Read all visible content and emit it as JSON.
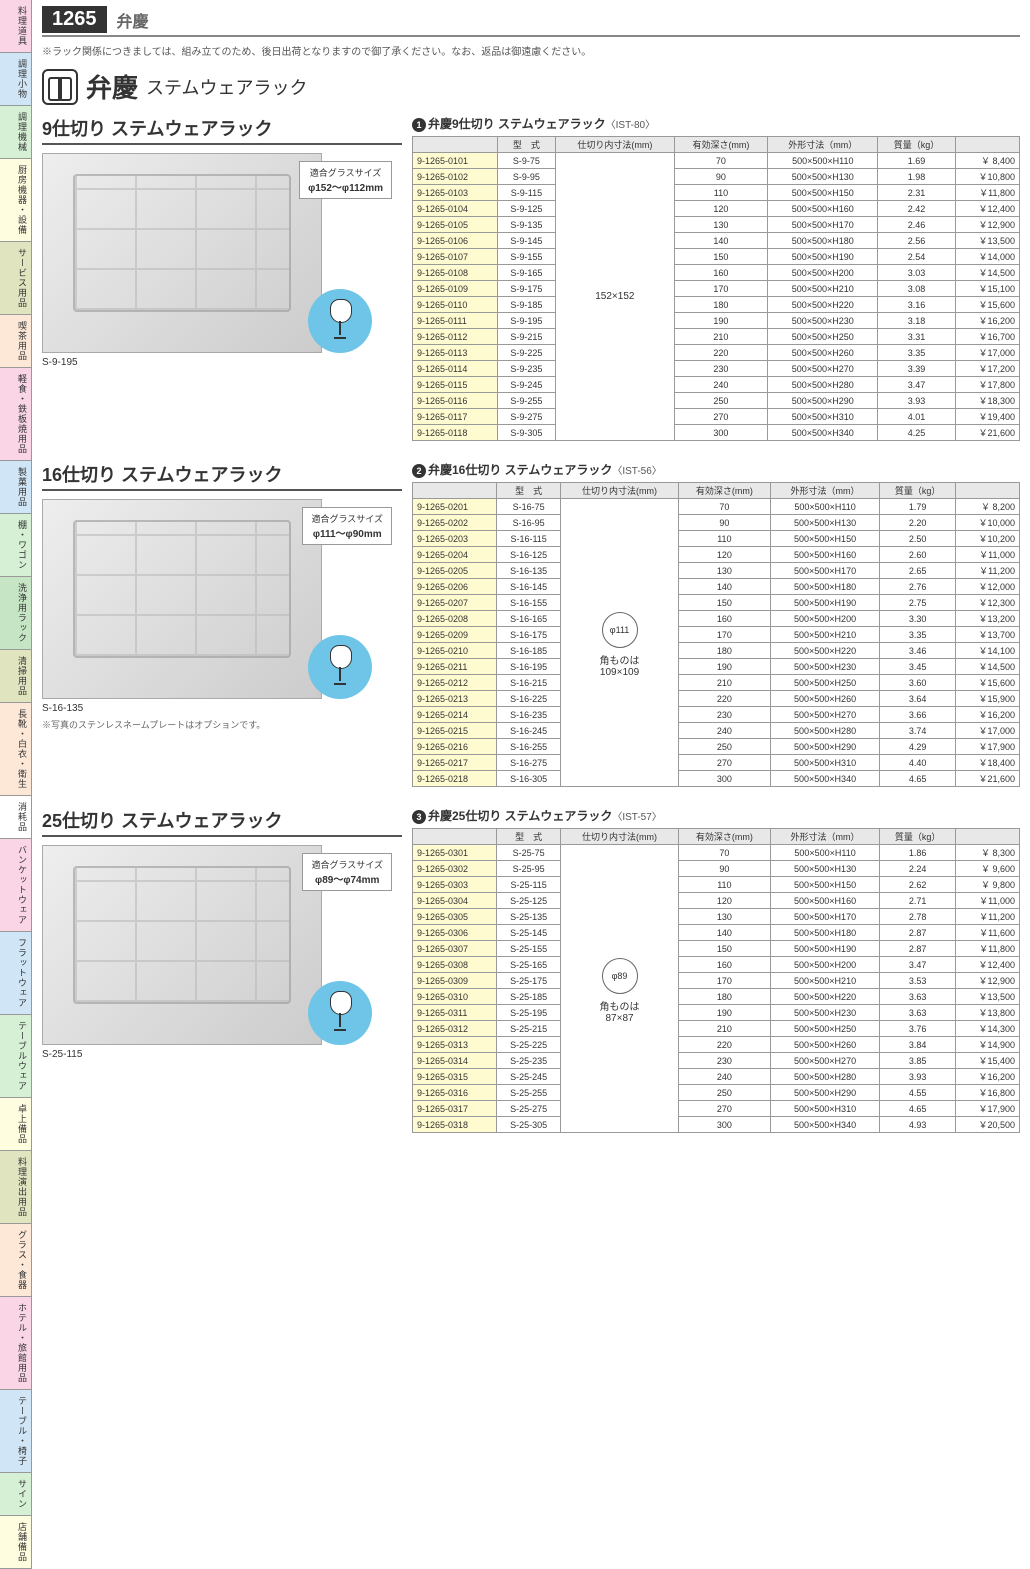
{
  "page_number": "1265",
  "header_category": "弁慶",
  "notice": "※ラック関係につきましては、組み立てのため、後日出荷となりますので御了承ください。なお、返品は御遠慮ください。",
  "logo_text": "弁慶",
  "logo_sub": "ステムウェアラック",
  "sidebar": [
    {
      "label": "料理道具",
      "c": "c-pink"
    },
    {
      "label": "調理小物",
      "c": "c-blue"
    },
    {
      "label": "調理機械",
      "c": "c-green"
    },
    {
      "label": "厨房機器・設備",
      "c": "c-yellow"
    },
    {
      "label": "サービス用品",
      "c": "c-olive"
    },
    {
      "label": "喫茶用品",
      "c": "c-peach"
    },
    {
      "label": "軽食・鉄板焼用品",
      "c": "c-pink"
    },
    {
      "label": "製菓用品",
      "c": "c-blue"
    },
    {
      "label": "棚・ワゴン",
      "c": "c-green"
    },
    {
      "label": "洗浄用ラック",
      "c": "c-hl"
    },
    {
      "label": "清掃用品",
      "c": "c-olive"
    },
    {
      "label": "長靴・白衣・衛生",
      "c": "c-peach"
    },
    {
      "label": "消耗品",
      "c": "c-white"
    },
    {
      "label": "バンケットウェア",
      "c": "c-pink"
    },
    {
      "label": "フラットウェア",
      "c": "c-blue"
    },
    {
      "label": "テーブルウェア",
      "c": "c-green"
    },
    {
      "label": "卓上備品",
      "c": "c-yellow"
    },
    {
      "label": "料理演出用品",
      "c": "c-olive"
    },
    {
      "label": "グラス・食器",
      "c": "c-peach"
    },
    {
      "label": "ホテル・旅館用品",
      "c": "c-pink"
    },
    {
      "label": "テーブル・椅子",
      "c": "c-blue"
    },
    {
      "label": "サイン",
      "c": "c-green"
    },
    {
      "label": "店舗備品",
      "c": "c-yellow"
    }
  ],
  "table_headers": {
    "code": "",
    "model": "型　式",
    "partition": "仕切り内寸法(mm)",
    "depth": "有効深さ(mm)",
    "outer": "外形寸法（mm）",
    "weight": "質量（kg）",
    "price": ""
  },
  "glass_size_label": "適合グラスサイズ",
  "sections": [
    {
      "title": "9仕切り ステムウェアラック",
      "model_shown": "S-9-195",
      "glass_size": "φ152～φ112mm",
      "option_note": "",
      "table_title": "弁慶9仕切り ステムウェアラック",
      "ist": "〈IST-80〉",
      "partition_text": "152×152",
      "partition_circle": "",
      "partition_sub": "",
      "rows": [
        [
          "9-1265-0101",
          "S-9-75",
          "70",
          "500×500×H110",
          "1.69",
          "￥ 8,400"
        ],
        [
          "9-1265-0102",
          "S-9-95",
          "90",
          "500×500×H130",
          "1.98",
          "￥10,800"
        ],
        [
          "9-1265-0103",
          "S-9-115",
          "110",
          "500×500×H150",
          "2.31",
          "￥11,800"
        ],
        [
          "9-1265-0104",
          "S-9-125",
          "120",
          "500×500×H160",
          "2.42",
          "￥12,400"
        ],
        [
          "9-1265-0105",
          "S-9-135",
          "130",
          "500×500×H170",
          "2.46",
          "￥12,900"
        ],
        [
          "9-1265-0106",
          "S-9-145",
          "140",
          "500×500×H180",
          "2.56",
          "￥13,500"
        ],
        [
          "9-1265-0107",
          "S-9-155",
          "150",
          "500×500×H190",
          "2.54",
          "￥14,000"
        ],
        [
          "9-1265-0108",
          "S-9-165",
          "160",
          "500×500×H200",
          "3.03",
          "￥14,500"
        ],
        [
          "9-1265-0109",
          "S-9-175",
          "170",
          "500×500×H210",
          "3.08",
          "￥15,100"
        ],
        [
          "9-1265-0110",
          "S-9-185",
          "180",
          "500×500×H220",
          "3.16",
          "￥15,600"
        ],
        [
          "9-1265-0111",
          "S-9-195",
          "190",
          "500×500×H230",
          "3.18",
          "￥16,200"
        ],
        [
          "9-1265-0112",
          "S-9-215",
          "210",
          "500×500×H250",
          "3.31",
          "￥16,700"
        ],
        [
          "9-1265-0113",
          "S-9-225",
          "220",
          "500×500×H260",
          "3.35",
          "￥17,000"
        ],
        [
          "9-1265-0114",
          "S-9-235",
          "230",
          "500×500×H270",
          "3.39",
          "￥17,200"
        ],
        [
          "9-1265-0115",
          "S-9-245",
          "240",
          "500×500×H280",
          "3.47",
          "￥17,800"
        ],
        [
          "9-1265-0116",
          "S-9-255",
          "250",
          "500×500×H290",
          "3.93",
          "￥18,300"
        ],
        [
          "9-1265-0117",
          "S-9-275",
          "270",
          "500×500×H310",
          "4.01",
          "￥19,400"
        ],
        [
          "9-1265-0118",
          "S-9-305",
          "300",
          "500×500×H340",
          "4.25",
          "￥21,600"
        ]
      ]
    },
    {
      "title": "16仕切り ステムウェアラック",
      "model_shown": "S-16-135",
      "glass_size": "φ111～φ90mm",
      "option_note": "※写真のステンレスネームプレートはオプションです。",
      "table_title": "弁慶16仕切り ステムウェアラック",
      "ist": "〈IST-56〉",
      "partition_text": "",
      "partition_circle": "φ111",
      "partition_sub": "角ものは\n109×109",
      "rows": [
        [
          "9-1265-0201",
          "S-16-75",
          "70",
          "500×500×H110",
          "1.79",
          "￥ 8,200"
        ],
        [
          "9-1265-0202",
          "S-16-95",
          "90",
          "500×500×H130",
          "2.20",
          "￥10,000"
        ],
        [
          "9-1265-0203",
          "S-16-115",
          "110",
          "500×500×H150",
          "2.50",
          "￥10,200"
        ],
        [
          "9-1265-0204",
          "S-16-125",
          "120",
          "500×500×H160",
          "2.60",
          "￥11,000"
        ],
        [
          "9-1265-0205",
          "S-16-135",
          "130",
          "500×500×H170",
          "2.65",
          "￥11,200"
        ],
        [
          "9-1265-0206",
          "S-16-145",
          "140",
          "500×500×H180",
          "2.76",
          "￥12,000"
        ],
        [
          "9-1265-0207",
          "S-16-155",
          "150",
          "500×500×H190",
          "2.75",
          "￥12,300"
        ],
        [
          "9-1265-0208",
          "S-16-165",
          "160",
          "500×500×H200",
          "3.30",
          "￥13,200"
        ],
        [
          "9-1265-0209",
          "S-16-175",
          "170",
          "500×500×H210",
          "3.35",
          "￥13,700"
        ],
        [
          "9-1265-0210",
          "S-16-185",
          "180",
          "500×500×H220",
          "3.46",
          "￥14,100"
        ],
        [
          "9-1265-0211",
          "S-16-195",
          "190",
          "500×500×H230",
          "3.45",
          "￥14,500"
        ],
        [
          "9-1265-0212",
          "S-16-215",
          "210",
          "500×500×H250",
          "3.60",
          "￥15,600"
        ],
        [
          "9-1265-0213",
          "S-16-225",
          "220",
          "500×500×H260",
          "3.64",
          "￥15,900"
        ],
        [
          "9-1265-0214",
          "S-16-235",
          "230",
          "500×500×H270",
          "3.66",
          "￥16,200"
        ],
        [
          "9-1265-0215",
          "S-16-245",
          "240",
          "500×500×H280",
          "3.74",
          "￥17,000"
        ],
        [
          "9-1265-0216",
          "S-16-255",
          "250",
          "500×500×H290",
          "4.29",
          "￥17,900"
        ],
        [
          "9-1265-0217",
          "S-16-275",
          "270",
          "500×500×H310",
          "4.40",
          "￥18,400"
        ],
        [
          "9-1265-0218",
          "S-16-305",
          "300",
          "500×500×H340",
          "4.65",
          "￥21,600"
        ]
      ]
    },
    {
      "title": "25仕切り ステムウェアラック",
      "model_shown": "S-25-115",
      "glass_size": "φ89～φ74mm",
      "option_note": "",
      "table_title": "弁慶25仕切り ステムウェアラック",
      "ist": "〈IST-57〉",
      "partition_text": "",
      "partition_circle": "φ89",
      "partition_sub": "角ものは\n87×87",
      "rows": [
        [
          "9-1265-0301",
          "S-25-75",
          "70",
          "500×500×H110",
          "1.86",
          "￥ 8,300"
        ],
        [
          "9-1265-0302",
          "S-25-95",
          "90",
          "500×500×H130",
          "2.24",
          "￥ 9,600"
        ],
        [
          "9-1265-0303",
          "S-25-115",
          "110",
          "500×500×H150",
          "2.62",
          "￥ 9,800"
        ],
        [
          "9-1265-0304",
          "S-25-125",
          "120",
          "500×500×H160",
          "2.71",
          "￥11,000"
        ],
        [
          "9-1265-0305",
          "S-25-135",
          "130",
          "500×500×H170",
          "2.78",
          "￥11,200"
        ],
        [
          "9-1265-0306",
          "S-25-145",
          "140",
          "500×500×H180",
          "2.87",
          "￥11,600"
        ],
        [
          "9-1265-0307",
          "S-25-155",
          "150",
          "500×500×H190",
          "2.87",
          "￥11,800"
        ],
        [
          "9-1265-0308",
          "S-25-165",
          "160",
          "500×500×H200",
          "3.47",
          "￥12,400"
        ],
        [
          "9-1265-0309",
          "S-25-175",
          "170",
          "500×500×H210",
          "3.53",
          "￥12,900"
        ],
        [
          "9-1265-0310",
          "S-25-185",
          "180",
          "500×500×H220",
          "3.63",
          "￥13,500"
        ],
        [
          "9-1265-0311",
          "S-25-195",
          "190",
          "500×500×H230",
          "3.63",
          "￥13,800"
        ],
        [
          "9-1265-0312",
          "S-25-215",
          "210",
          "500×500×H250",
          "3.76",
          "￥14,300"
        ],
        [
          "9-1265-0313",
          "S-25-225",
          "220",
          "500×500×H260",
          "3.84",
          "￥14,900"
        ],
        [
          "9-1265-0314",
          "S-25-235",
          "230",
          "500×500×H270",
          "3.85",
          "￥15,400"
        ],
        [
          "9-1265-0315",
          "S-25-245",
          "240",
          "500×500×H280",
          "3.93",
          "￥16,200"
        ],
        [
          "9-1265-0316",
          "S-25-255",
          "250",
          "500×500×H290",
          "4.55",
          "￥16,800"
        ],
        [
          "9-1265-0317",
          "S-25-275",
          "270",
          "500×500×H310",
          "4.65",
          "￥17,900"
        ],
        [
          "9-1265-0318",
          "S-25-305",
          "300",
          "500×500×H340",
          "4.93",
          "￥20,500"
        ]
      ]
    }
  ]
}
